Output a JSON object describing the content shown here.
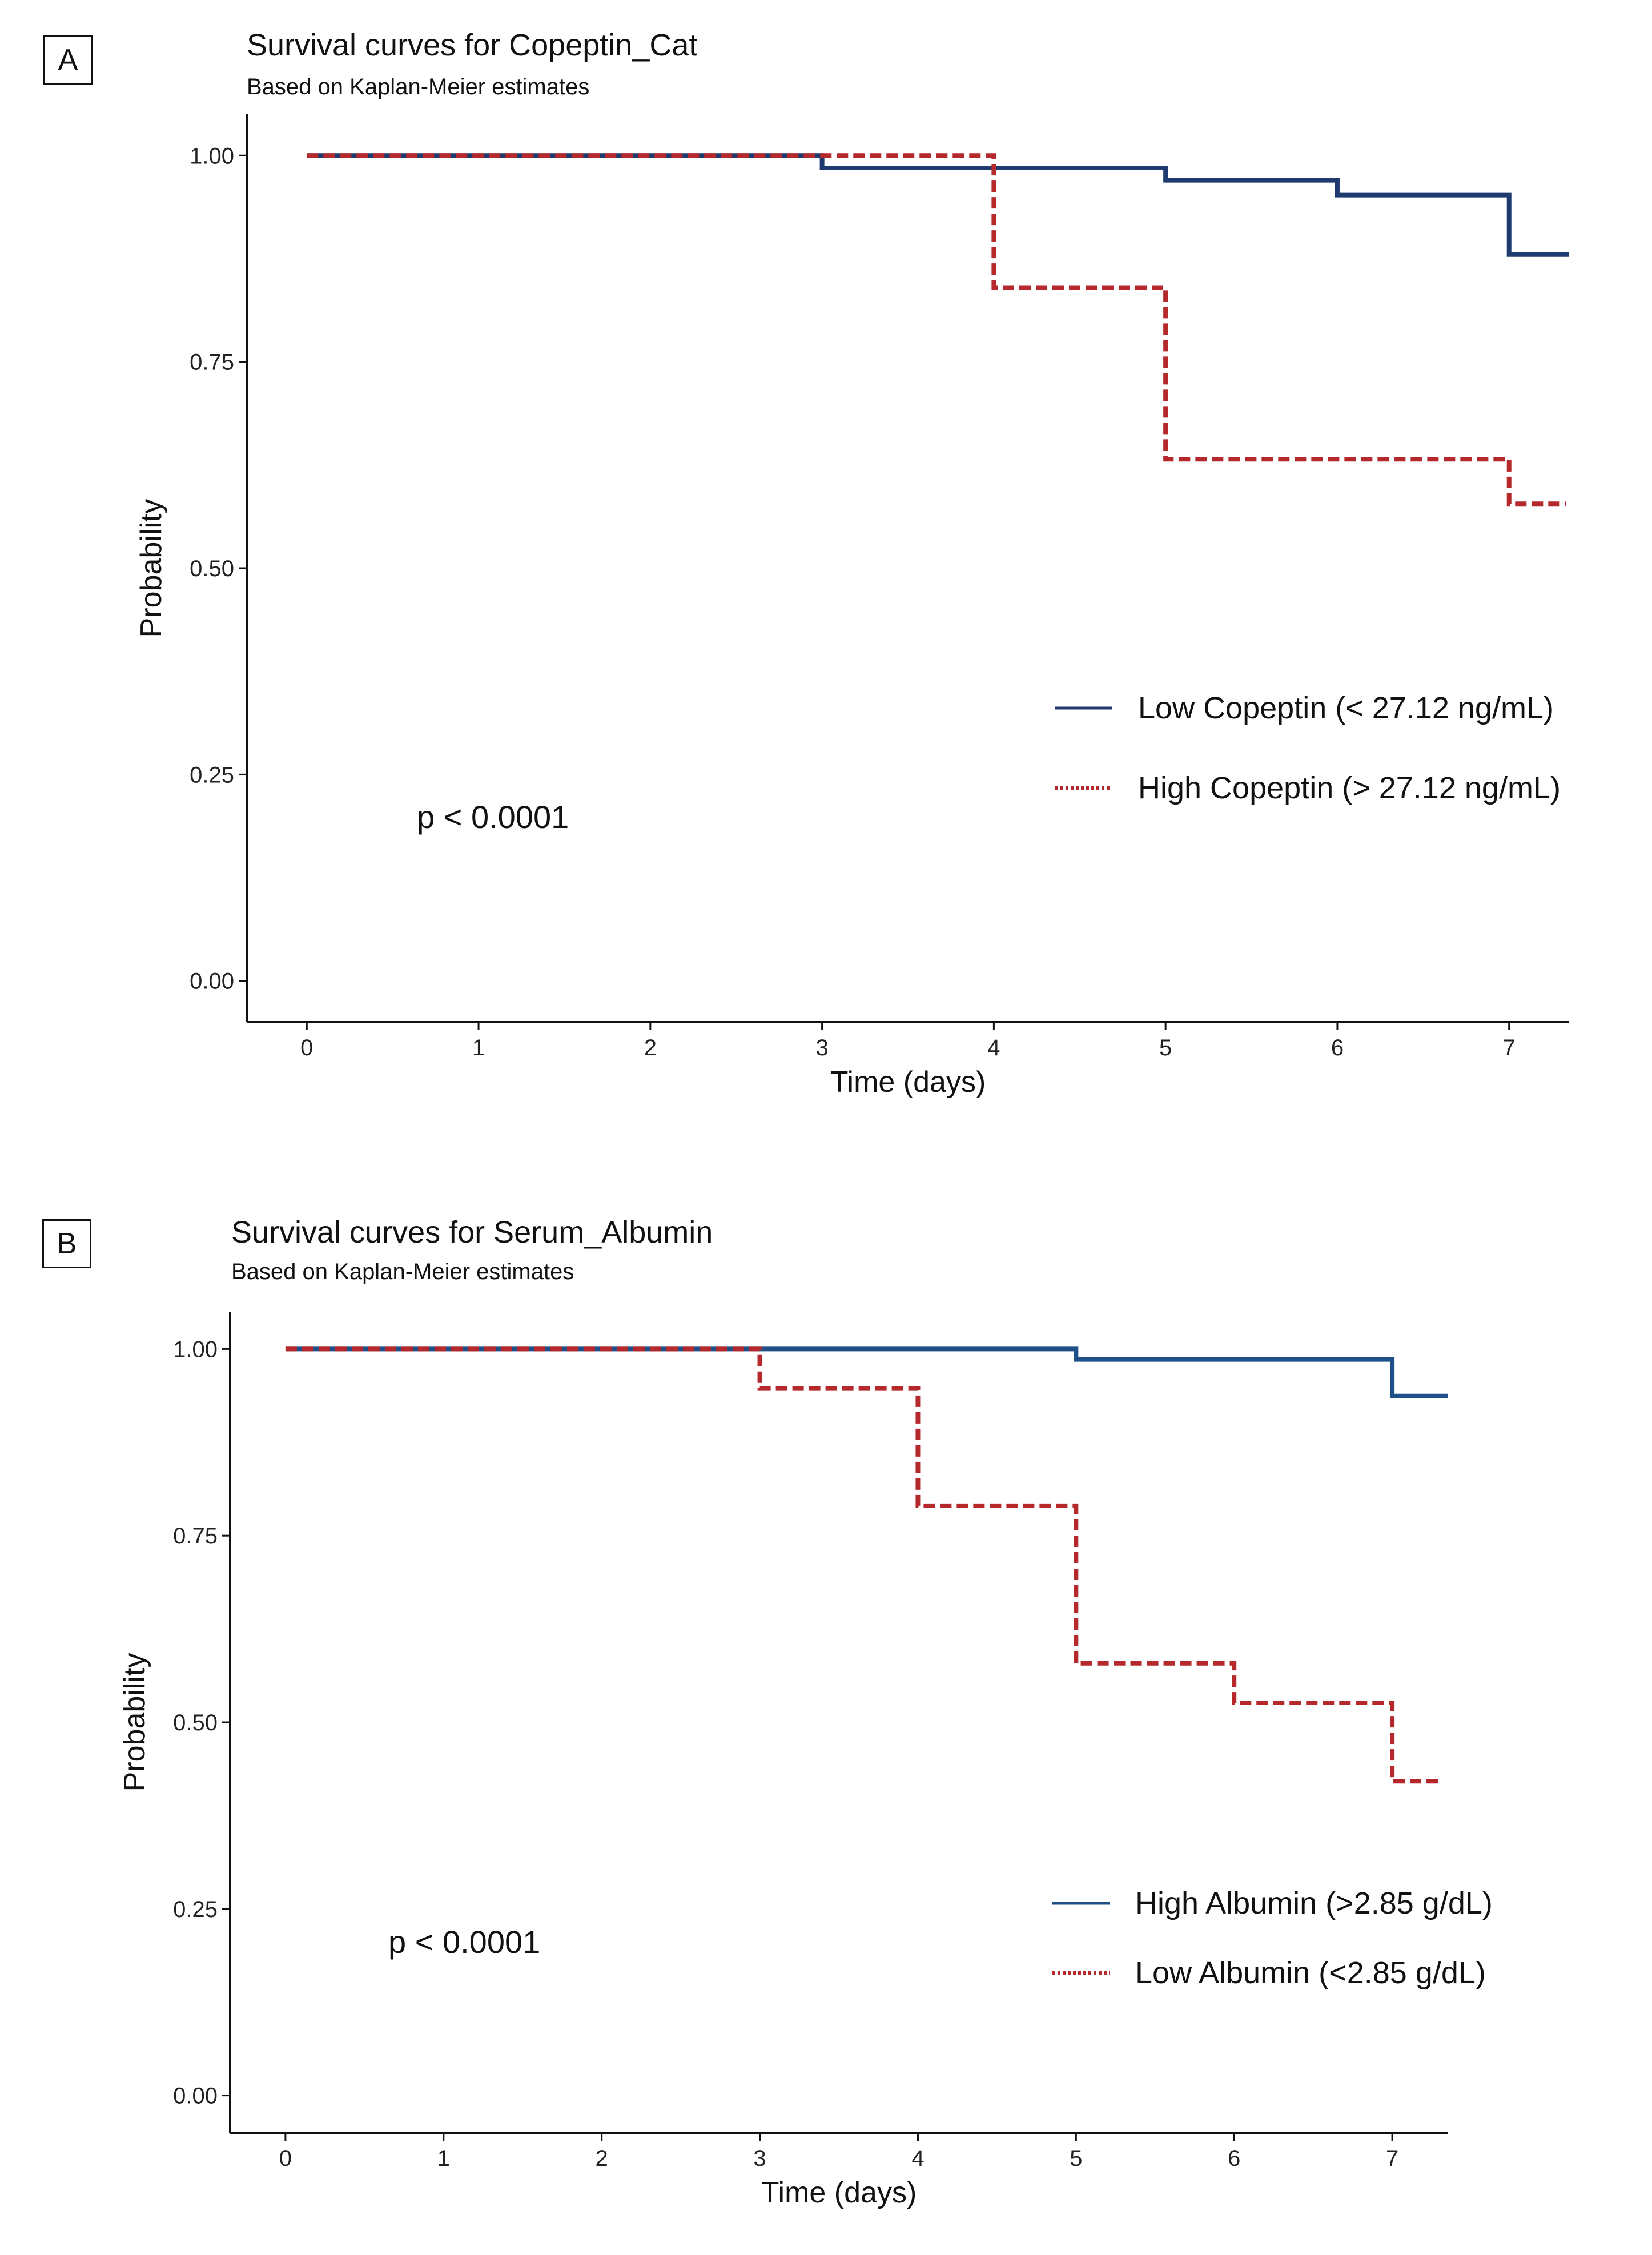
{
  "chart_data": [
    {
      "type": "line",
      "panel_label": "A",
      "title": "Survival curves for Copeptin_Cat",
      "subtitle": "Based on Kaplan-Meier estimates",
      "xlabel": "Time (days)",
      "ylabel": "Probability",
      "xlim": [
        -0.35,
        7.35
      ],
      "ylim": [
        -0.05,
        1.05
      ],
      "x_ticks": [
        0,
        1,
        2,
        3,
        4,
        5,
        6,
        7
      ],
      "y_ticks": [
        0,
        0.25,
        0.5,
        0.75,
        1.0
      ],
      "y_tick_labels": [
        "0.00",
        "0.25",
        "0.50",
        "0.75",
        "1.00"
      ],
      "annotation": "p < 0.0001",
      "legend_position": "right",
      "grid": false,
      "series": [
        {
          "name": "Low Copeptin (< 27.12 ng/mL)",
          "color": "#1f3a6e",
          "style": "solid",
          "x": [
            0,
            3,
            5,
            6,
            7,
            7.35
          ],
          "y": [
            1.0,
            0.985,
            0.97,
            0.952,
            0.88,
            0.88
          ]
        },
        {
          "name": "High Copeptin (> 27.12 ng/mL)",
          "color": "#b5282b",
          "style": "dashed",
          "x": [
            0,
            4,
            5,
            7,
            7.33
          ],
          "y": [
            1.0,
            0.84,
            0.632,
            0.578,
            0.578
          ]
        }
      ]
    },
    {
      "type": "line",
      "panel_label": "B",
      "title": "Survival curves for Serum_Albumin",
      "subtitle": "Based on Kaplan-Meier estimates",
      "xlabel": "Time (days)",
      "ylabel": "Probability",
      "xlim": [
        -0.35,
        7.35
      ],
      "ylim": [
        -0.05,
        1.05
      ],
      "x_ticks": [
        0,
        1,
        2,
        3,
        4,
        5,
        6,
        7
      ],
      "y_ticks": [
        0,
        0.25,
        0.5,
        0.75,
        1.0
      ],
      "y_tick_labels": [
        "0.00",
        "0.25",
        "0.50",
        "0.75",
        "1.00"
      ],
      "annotation": "p < 0.0001",
      "legend_position": "right",
      "grid": false,
      "series": [
        {
          "name": "High Albumin (>2.85 g/dL)",
          "color": "#1e4f86",
          "style": "solid",
          "x": [
            0,
            5,
            7,
            7.35
          ],
          "y": [
            1.0,
            0.986,
            0.937,
            0.937
          ]
        },
        {
          "name": "Low Albumin (<2.85 g/dL)",
          "color": "#b5282b",
          "style": "dashed",
          "x": [
            0,
            3,
            4,
            5,
            6,
            7,
            7.3
          ],
          "y": [
            1.0,
            0.947,
            0.79,
            0.579,
            0.526,
            0.421,
            0.421
          ]
        }
      ]
    }
  ]
}
